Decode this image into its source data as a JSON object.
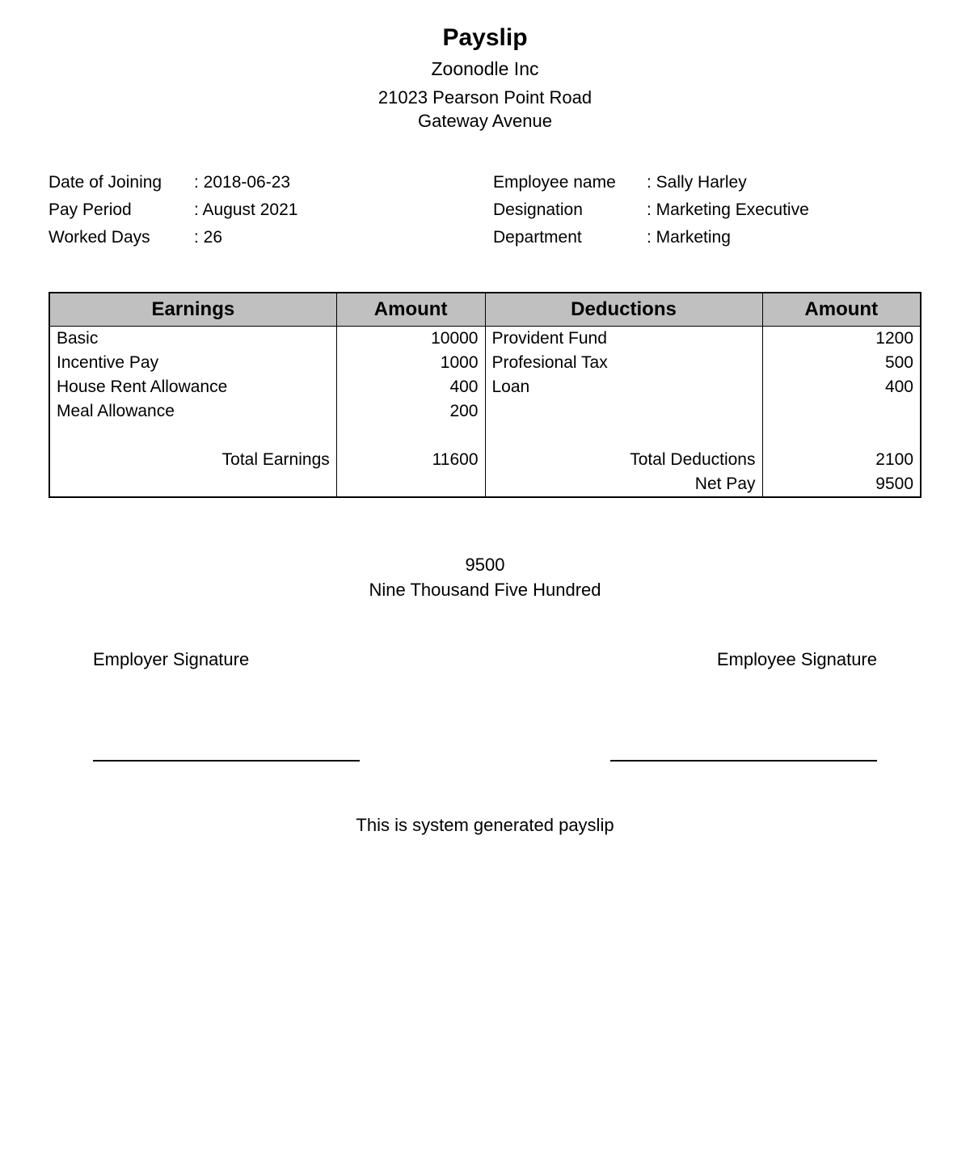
{
  "header": {
    "title": "Payslip",
    "company": "Zoonodle Inc",
    "address_line1": "21023 Pearson Point Road",
    "address_line2": "Gateway Avenue"
  },
  "info": {
    "left": [
      {
        "label": "Date of Joining",
        "value": "2018-06-23"
      },
      {
        "label": "Pay Period",
        "value": "August 2021"
      },
      {
        "label": "Worked Days",
        "value": "26"
      }
    ],
    "right": [
      {
        "label": "Employee name",
        "value": "Sally Harley"
      },
      {
        "label": "Designation",
        "value": "Marketing Executive"
      },
      {
        "label": "Department",
        "value": "Marketing"
      }
    ]
  },
  "table": {
    "headers": {
      "earnings": "Earnings",
      "earnings_amount": "Amount",
      "deductions": "Deductions",
      "deductions_amount": "Amount"
    },
    "rows": [
      {
        "e_label": "Basic",
        "e_amount": "10000",
        "d_label": "Provident Fund",
        "d_amount": "1200"
      },
      {
        "e_label": "Incentive Pay",
        "e_amount": "1000",
        "d_label": "Profesional Tax",
        "d_amount": "500"
      },
      {
        "e_label": "House Rent Allowance",
        "e_amount": "400",
        "d_label": "Loan",
        "d_amount": "400"
      },
      {
        "e_label": "Meal Allowance",
        "e_amount": "200",
        "d_label": "",
        "d_amount": ""
      }
    ],
    "totals": {
      "earnings_label": "Total Earnings",
      "earnings_amount": "11600",
      "deductions_label": "Total Deductions",
      "deductions_amount": "2100",
      "netpay_label": "Net Pay",
      "netpay_amount": "9500"
    }
  },
  "net_summary": {
    "amount": "9500",
    "words": "Nine Thousand Five Hundred"
  },
  "signatures": {
    "employer": "Employer Signature",
    "employee": "Employee Signature"
  },
  "footer": "This is system generated payslip",
  "style": {
    "header_bg": "#c0c0c0",
    "border_color": "#000000",
    "text_color": "#000000",
    "background": "#ffffff"
  }
}
